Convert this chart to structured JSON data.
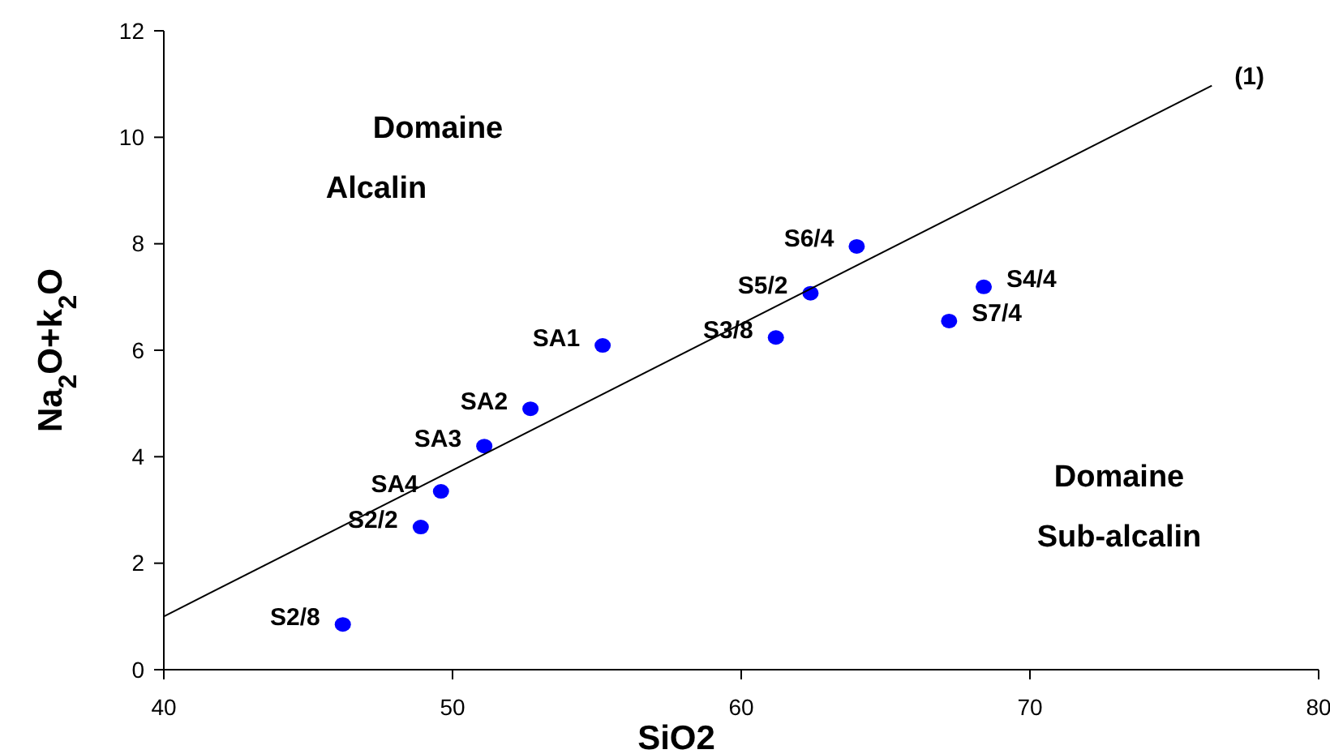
{
  "chart_data": {
    "type": "scatter",
    "xlabel": "SiO2",
    "ylabel": "Na$_{2}$O+k$_{2}$O",
    "xlim": [
      40,
      80
    ],
    "ylim": [
      0,
      12
    ],
    "xticks": [
      40,
      50,
      60,
      70,
      80
    ],
    "yticks": [
      0,
      2,
      4,
      6,
      8,
      10,
      12
    ],
    "grid": false,
    "series": [
      {
        "marker": "circle",
        "color": "#0000ff",
        "x": [
          46.2,
          48.9,
          49.6,
          51.1,
          52.7,
          55.2,
          61.2,
          62.4,
          64.0,
          67.2,
          68.4
        ],
        "values": [
          0.85,
          2.68,
          3.35,
          4.2,
          4.9,
          6.09,
          6.24,
          7.07,
          7.95,
          6.55,
          7.19
        ]
      },
      {
        "type": "line",
        "color": "#000000",
        "x": [
          40,
          76.3
        ],
        "values": [
          1.0,
          10.97
        ]
      }
    ],
    "annotations": [
      "Domaine Alcalin",
      "Domaine Sub-alcalin",
      {
        "text": "(1)",
        "x": 76.3,
        "y": 10.97
      },
      {
        "text": "S2/8",
        "x": 46.2,
        "y": 0.85
      },
      {
        "text": "S2/2",
        "x": 48.9,
        "y": 2.68
      },
      {
        "text": "SA4",
        "x": 49.6,
        "y": 3.35
      },
      {
        "text": "SA3",
        "x": 51.1,
        "y": 4.2
      },
      {
        "text": "SA2",
        "x": 52.7,
        "y": 4.9
      },
      {
        "text": "SA1",
        "x": 55.2,
        "y": 6.09
      },
      {
        "text": "S3/8",
        "x": 61.2,
        "y": 6.24
      },
      {
        "text": "S5/2",
        "x": 62.4,
        "y": 7.07
      },
      {
        "text": "S6/4",
        "x": 64.0,
        "y": 7.95
      },
      {
        "text": "S7/4",
        "x": 67.2,
        "y": 6.55
      },
      {
        "text": "S4/4",
        "x": 68.4,
        "y": 7.19
      }
    ]
  }
}
